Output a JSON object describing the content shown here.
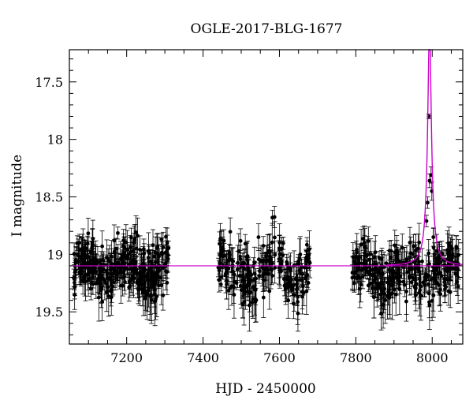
{
  "chart_data": {
    "type": "scatter",
    "title": "OGLE-2017-BLG-1677",
    "xlabel": "HJD - 2450000",
    "ylabel": "I magnitude",
    "xlim": [
      7050,
      8080
    ],
    "ylim": [
      19.78,
      17.22
    ],
    "y_inverted": true,
    "grid": false,
    "x_ticks": [
      7200,
      7400,
      7600,
      7800,
      8000
    ],
    "y_ticks": [
      17.5,
      18,
      18.5,
      19,
      19.5
    ],
    "baseline_magnitude": 19.1,
    "model_color": "#cc00cc",
    "point_color": "#000000",
    "model": {
      "baseline": 19.1,
      "peak_time": 7993,
      "peak_magnitude": 17.0,
      "timescale_days": 9
    },
    "seasons": [
      {
        "start": 7060,
        "end": 7310,
        "mean": 19.13,
        "spread": 0.38,
        "count": 330
      },
      {
        "start": 7440,
        "end": 7680,
        "mean": 19.15,
        "spread": 0.42,
        "count": 230
      },
      {
        "start": 7790,
        "end": 8070,
        "mean": 19.16,
        "spread": 0.4,
        "count": 300
      }
    ],
    "event_points": [
      {
        "x": 7985,
        "y": 18.71,
        "err": 0.05
      },
      {
        "x": 7988,
        "y": 18.55,
        "err": 0.05
      },
      {
        "x": 7991,
        "y": 17.8,
        "err": 0.02
      },
      {
        "x": 7993,
        "y": 18.36,
        "err": 0.06
      },
      {
        "x": 7997,
        "y": 18.31,
        "err": 0.07
      },
      {
        "x": 7999,
        "y": 18.45,
        "err": 0.08
      },
      {
        "x": 8003,
        "y": 18.85,
        "err": 0.08
      },
      {
        "x": 8006,
        "y": 19.0,
        "err": 0.1
      }
    ]
  }
}
